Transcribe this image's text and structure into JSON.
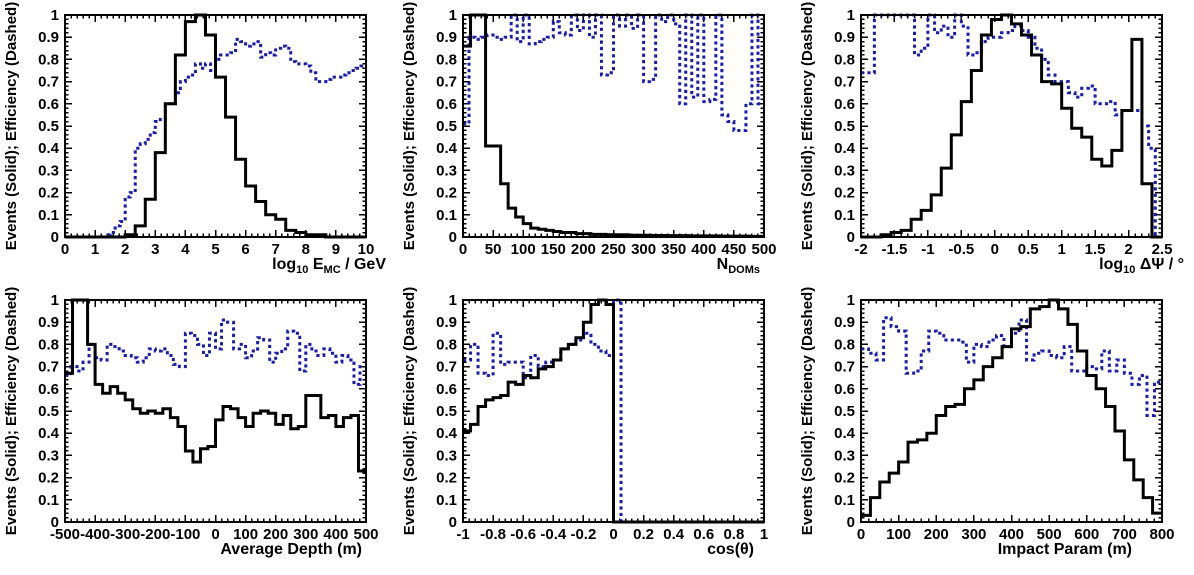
{
  "figure": {
    "description": "Six ROOT-style histogram panels comparing event distributions (solid) and efficiency (dashed)",
    "colors": {
      "solid": "#000000",
      "dashed": "#1c1caa",
      "background": "#ffffff",
      "frame": "#000000"
    }
  },
  "y_axis": {
    "label": "Events (Solid); Efficiency (Dashed)",
    "ticks": [
      0,
      0.1,
      0.2,
      0.3,
      0.4,
      0.5,
      0.6,
      0.7,
      0.8,
      0.9,
      1
    ],
    "tick_labels": [
      "0",
      "0.1",
      "0.2",
      "0.3",
      "0.4",
      "0.5",
      "0.6",
      "0.7",
      "0.8",
      "0.9",
      "1"
    ],
    "range": [
      0,
      1
    ]
  },
  "chart_data": [
    {
      "type": "bar",
      "subtype": "step-histogram",
      "name": "log10-energy",
      "xlabel": "log10 EMC / GeV",
      "xlabel_parts": [
        {
          "t": "log"
        },
        {
          "t": "10",
          "sub": true
        },
        {
          "t": " E"
        },
        {
          "t": "MC",
          "sub": true
        },
        {
          "t": " / GeV"
        }
      ],
      "xlabel_end_offset": 20,
      "ylabel": "Events (Solid); Efficiency (Dashed)",
      "xlim": [
        0,
        10
      ],
      "ylim": [
        0,
        1
      ],
      "xticks": [
        0,
        1,
        2,
        3,
        4,
        5,
        6,
        7,
        8,
        9,
        10
      ],
      "xtick_labels": [
        "0",
        "1",
        "2",
        "3",
        "4",
        "5",
        "6",
        "7",
        "8",
        "9",
        "10"
      ],
      "x_minor": 5,
      "y_minor": 5,
      "series": [
        {
          "name": "Events",
          "style": "solid",
          "color": "#000000",
          "values": [
            0,
            0,
            0,
            0,
            0,
            0,
            0.01,
            0.05,
            0.17,
            0.38,
            0.6,
            0.82,
            0.97,
            1.0,
            0.91,
            0.72,
            0.54,
            0.35,
            0.23,
            0.16,
            0.1,
            0.08,
            0.03,
            0.02,
            0.01,
            0.01,
            0,
            0,
            0,
            0
          ]
        },
        {
          "name": "Efficiency",
          "style": "dashed",
          "color": "#1c1caa",
          "values": [
            0,
            0,
            0,
            0,
            0,
            0,
            0,
            0,
            0.01,
            0.02,
            0.05,
            0.07,
            0.18,
            0.2,
            0.4,
            0.42,
            0.44,
            0.47,
            0.52,
            0.53,
            0.6,
            0.6,
            0.65,
            0.7,
            0.72,
            0.73,
            0.78,
            0.76,
            0.78,
            0.75,
            0.8,
            0.82,
            0.82,
            0.83,
            0.89,
            0.88,
            0.86,
            0.87,
            0.88,
            0.81,
            0.83,
            0.82,
            0.85,
            0.86,
            0.85,
            0.79,
            0.78,
            0.78,
            0.77,
            0.74,
            0.7,
            0.7,
            0.71,
            0.72,
            0.72,
            0.73,
            0.74,
            0.75,
            0.76,
            0.77
          ]
        }
      ]
    },
    {
      "type": "bar",
      "subtype": "step-histogram",
      "name": "ndoms",
      "xlabel": "NDOMs",
      "xlabel_parts": [
        {
          "t": "N"
        },
        {
          "t": "DOMs",
          "sub": true
        }
      ],
      "xlabel_end_offset": -4,
      "ylabel": "Events (Solid); Efficiency (Dashed)",
      "xlim": [
        0,
        500
      ],
      "ylim": [
        0,
        1
      ],
      "xticks": [
        0,
        50,
        100,
        150,
        200,
        250,
        300,
        350,
        400,
        450,
        500
      ],
      "xtick_labels": [
        "0",
        "50",
        "100",
        "150",
        "200",
        "250",
        "300",
        "350",
        "400",
        "450",
        "500"
      ],
      "x_minor": 5,
      "y_minor": 5,
      "series": [
        {
          "name": "Events",
          "style": "solid",
          "color": "#000000",
          "values": [
            0.86,
            1.0,
            1.0,
            0.41,
            0.41,
            0.24,
            0.13,
            0.09,
            0.06,
            0.04,
            0.035,
            0.03,
            0.025,
            0.02,
            0.02,
            0.015,
            0.015,
            0.012,
            0.012,
            0.01,
            0.01,
            0.01,
            0.008,
            0.008,
            0.008,
            0.007,
            0.007,
            0.006,
            0.006,
            0.006,
            0.005,
            0.005,
            0.005,
            0.005,
            0.004,
            0.004,
            0.004,
            0.004,
            0.003,
            0.003
          ]
        },
        {
          "name": "Efficiency",
          "style": "dashed",
          "color": "#1c1caa",
          "values": [
            0.51,
            0.9,
            0.89,
            0.9,
            0.91,
            0.9,
            0.89,
            0.9,
            1.0,
            0.88,
            1.0,
            0.87,
            0.88,
            0.89,
            0.9,
            0.97,
            0.92,
            0.91,
            1.0,
            0.93,
            1.0,
            0.9,
            1.0,
            0.73,
            0.74,
            1.0,
            0.95,
            1.0,
            0.94,
            1.0,
            0.7,
            0.71,
            1.0,
            0.97,
            1.0,
            0.96,
            0.6,
            1.0,
            0.63,
            1.0,
            0.61,
            0.62,
            1.0,
            0.55,
            0.52,
            0.48,
            0.48,
            0.6,
            1.0,
            0.6
          ]
        }
      ]
    },
    {
      "type": "bar",
      "subtype": "step-histogram",
      "name": "log10-deltapsi",
      "xlabel": "log10 ΔΨ / °",
      "xlabel_parts": [
        {
          "t": "log"
        },
        {
          "t": "10",
          "sub": true
        },
        {
          "t": " ΔΨ / °"
        }
      ],
      "xlabel_end_offset": 22,
      "ylabel": "Events (Solid); Efficiency (Dashed)",
      "xlim": [
        -2,
        2.5
      ],
      "ylim": [
        0,
        1
      ],
      "xticks": [
        -2,
        -1.5,
        -1,
        -0.5,
        0,
        0.5,
        1,
        1.5,
        2,
        2.5
      ],
      "xtick_labels": [
        "-2",
        "-1.5",
        "-1",
        "-0.5",
        "0",
        "0.5",
        "1",
        "1.5",
        "2",
        "2.5"
      ],
      "x_minor": 5,
      "y_minor": 5,
      "series": [
        {
          "name": "Events",
          "style": "solid",
          "color": "#000000",
          "values": [
            0,
            0,
            0.01,
            0.02,
            0.03,
            0.08,
            0.12,
            0.19,
            0.31,
            0.46,
            0.61,
            0.75,
            0.91,
            0.98,
            1.0,
            0.96,
            0.91,
            0.82,
            0.7,
            0.69,
            0.58,
            0.49,
            0.45,
            0.35,
            0.32,
            0.39,
            0.57,
            0.89,
            0.24,
            0
          ]
        },
        {
          "name": "Efficiency",
          "style": "dashed",
          "color": "#1c1caa",
          "values": [
            0.74,
            0.74,
            1.0,
            1.0,
            1.0,
            1.0,
            1.0,
            1.0,
            0.82,
            0.85,
            1.0,
            0.92,
            0.95,
            0.9,
            1.0,
            0.95,
            0.82,
            0.83,
            0.88,
            0.9,
            0.9,
            0.92,
            0.93,
            0.95,
            0.93,
            0.9,
            0.85,
            0.8,
            0.73,
            0.7,
            0.7,
            0.65,
            0.63,
            0.67,
            0.68,
            0.6,
            0.6,
            0.61,
            0.55,
            0.57,
            0.57,
            0.57,
            0.5,
            0.4,
            0
          ]
        }
      ]
    },
    {
      "type": "bar",
      "subtype": "step-histogram",
      "name": "average-depth",
      "xlabel": "Average Depth (m)",
      "xlabel_parts": [
        {
          "t": "Average Depth (m)"
        }
      ],
      "xlabel_end_offset": -4,
      "ylabel": "Events (Solid); Efficiency (Dashed)",
      "xlim": [
        -500,
        500
      ],
      "ylim": [
        0,
        1
      ],
      "xticks": [
        -500,
        -400,
        -300,
        -200,
        -100,
        0,
        100,
        200,
        300,
        400,
        500
      ],
      "xtick_labels": [
        "-500",
        "-400",
        "-300",
        "-200",
        "-100",
        "0",
        "100",
        "200",
        "300",
        "400",
        "500"
      ],
      "x_minor": 5,
      "y_minor": 5,
      "series": [
        {
          "name": "Events",
          "style": "solid",
          "color": "#000000",
          "values": [
            0.67,
            1.0,
            1.0,
            0.8,
            0.62,
            0.58,
            0.61,
            0.58,
            0.55,
            0.51,
            0.49,
            0.5,
            0.49,
            0.51,
            0.47,
            0.43,
            0.32,
            0.27,
            0.33,
            0.34,
            0.46,
            0.52,
            0.51,
            0.47,
            0.43,
            0.49,
            0.5,
            0.49,
            0.44,
            0.48,
            0.42,
            0.43,
            0.57,
            0.57,
            0.47,
            0.48,
            0.43,
            0.47,
            0.48,
            0.23
          ]
        },
        {
          "name": "Efficiency",
          "style": "dashed",
          "color": "#1c1caa",
          "values": [
            0.66,
            0.7,
            0.68,
            0.72,
            0.8,
            0.74,
            0.73,
            0.8,
            0.79,
            0.77,
            0.75,
            0.74,
            0.72,
            0.74,
            0.78,
            0.77,
            0.78,
            0.75,
            0.71,
            0.7,
            0.85,
            0.84,
            0.8,
            0.75,
            0.85,
            0.78,
            0.91,
            0.9,
            0.78,
            0.8,
            0.74,
            0.77,
            0.83,
            0.82,
            0.72,
            0.76,
            0.78,
            0.86,
            0.85,
            0.68,
            0.8,
            0.77,
            0.75,
            0.78,
            0.76,
            0.72,
            0.75,
            0.73,
            0.62,
            0.7
          ]
        }
      ]
    },
    {
      "type": "bar",
      "subtype": "step-histogram",
      "name": "costheta",
      "xlabel": "cos(θ)",
      "xlabel_parts": [
        {
          "t": "cos(θ)"
        }
      ],
      "xlabel_end_offset": -10,
      "ylabel": "Events (Solid); Efficiency (Dashed)",
      "xlim": [
        -1,
        1
      ],
      "ylim": [
        0,
        1
      ],
      "xticks": [
        -1,
        -0.8,
        -0.6,
        -0.4,
        -0.2,
        0,
        0.2,
        0.4,
        0.6,
        0.8,
        1
      ],
      "xtick_labels": [
        "-1",
        "-0.8",
        "-0.6",
        "-0.4",
        "-0.2",
        "0",
        "0.2",
        "0.4",
        "0.6",
        "0.8",
        "1"
      ],
      "x_minor": 5,
      "y_minor": 5,
      "series": [
        {
          "name": "Events",
          "style": "solid",
          "color": "#000000",
          "values": [
            0.41,
            0.44,
            0.52,
            0.55,
            0.56,
            0.57,
            0.63,
            0.62,
            0.66,
            0.65,
            0.69,
            0.7,
            0.73,
            0.78,
            0.8,
            0.83,
            0.9,
            0.98,
            1.0,
            0.98,
            0,
            0,
            0,
            0,
            0,
            0,
            0,
            0,
            0,
            0,
            0,
            0,
            0,
            0,
            0,
            0,
            0,
            0,
            0,
            0
          ]
        },
        {
          "name": "Efficiency",
          "style": "dashed",
          "color": "#1c1caa",
          "values": [
            0.73,
            0.8,
            0.67,
            0.66,
            0.85,
            0.71,
            0.72,
            0.72,
            0.65,
            0.75,
            0.7,
            0.72,
            0.73,
            0.78,
            0.8,
            0.82,
            0.85,
            0.8,
            0.77,
            0.75,
            1.0,
            0,
            0,
            0,
            0,
            0,
            0,
            0,
            0,
            0,
            0,
            0,
            0,
            0,
            0,
            0,
            0,
            0,
            0,
            0
          ]
        }
      ]
    },
    {
      "type": "bar",
      "subtype": "step-histogram",
      "name": "impact-param",
      "xlabel": "Impact Param (m)",
      "xlabel_parts": [
        {
          "t": "Impact Param (m)"
        }
      ],
      "xlabel_end_offset": -30,
      "ylabel": "Events (Solid); Efficiency (Dashed)",
      "xlim": [
        0,
        800
      ],
      "ylim": [
        0,
        1
      ],
      "xticks": [
        0,
        100,
        200,
        300,
        400,
        500,
        600,
        700,
        800
      ],
      "xtick_labels": [
        "0",
        "100",
        "200",
        "300",
        "400",
        "500",
        "600",
        "700",
        "800"
      ],
      "x_minor": 5,
      "y_minor": 5,
      "series": [
        {
          "name": "Events",
          "style": "solid",
          "color": "#000000",
          "values": [
            0.03,
            0.11,
            0.18,
            0.22,
            0.27,
            0.36,
            0.37,
            0.4,
            0.48,
            0.52,
            0.53,
            0.6,
            0.64,
            0.7,
            0.74,
            0.79,
            0.87,
            0.88,
            0.96,
            0.97,
            1.0,
            0.96,
            0.89,
            0.77,
            0.66,
            0.6,
            0.52,
            0.41,
            0.28,
            0.19,
            0.11,
            0.04
          ]
        },
        {
          "name": "Efficiency",
          "style": "dashed",
          "color": "#1c1caa",
          "values": [
            0.78,
            0.76,
            0.73,
            0.92,
            0.88,
            0.86,
            0.67,
            0.68,
            0.77,
            0.86,
            0.85,
            0.82,
            0.82,
            0.81,
            0.72,
            0.8,
            0.79,
            0.82,
            0.84,
            0.79,
            0.85,
            0.91,
            0.73,
            0.76,
            0.77,
            0.75,
            0.74,
            0.79,
            0.68,
            0.68,
            0.7,
            0.69,
            0.77,
            0.68,
            0.73,
            0.67,
            0.62,
            0.66,
            0.48,
            0.63
          ]
        }
      ]
    }
  ]
}
